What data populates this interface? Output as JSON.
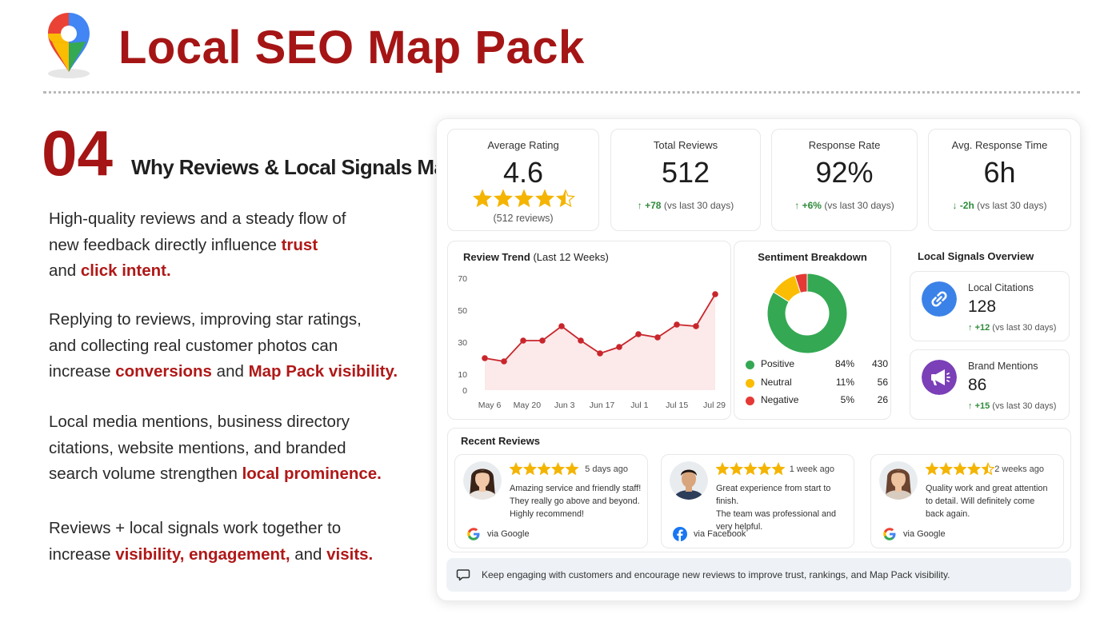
{
  "header": {
    "title": "Local SEO Map Pack",
    "pin_colors": {
      "red": "#EA4335",
      "yellow": "#FBBC04",
      "green": "#34A853",
      "blue": "#4285F4"
    }
  },
  "section": {
    "number": "04",
    "heading": "Why Reviews & Local Signals Matter"
  },
  "paragraphs": [
    [
      [
        {
          "t": "High-quality reviews and a steady flow of",
          "h": false
        }
      ],
      [
        {
          "t": "new feedback directly influence ",
          "h": false
        },
        {
          "t": "trust",
          "h": true
        }
      ],
      [
        {
          "t": "and ",
          "h": false
        },
        {
          "t": "click intent.",
          "h": true
        }
      ]
    ],
    [
      [
        {
          "t": "Replying to reviews, improving star ratings,",
          "h": false
        }
      ],
      [
        {
          "t": "and collecting real customer photos can",
          "h": false
        }
      ],
      [
        {
          "t": "increase ",
          "h": false
        },
        {
          "t": "conversions",
          "h": true
        },
        {
          "t": " and ",
          "h": false
        },
        {
          "t": "Map Pack visibility.",
          "h": true
        }
      ]
    ],
    [
      [
        {
          "t": "Local media mentions, business directory",
          "h": false
        }
      ],
      [
        {
          "t": "citations, website mentions, and branded",
          "h": false
        }
      ],
      [
        {
          "t": "search volume strengthen ",
          "h": false
        },
        {
          "t": "local prominence.",
          "h": true
        }
      ]
    ],
    [
      [
        {
          "t": "Reviews + local signals work together to",
          "h": false
        }
      ],
      [
        {
          "t": "increase ",
          "h": false
        },
        {
          "t": "visibility, engagement,",
          "h": true
        },
        {
          "t": " and ",
          "h": false
        },
        {
          "t": "visits.",
          "h": true
        }
      ]
    ]
  ],
  "kpis": {
    "avg_rating": {
      "label": "Average Rating",
      "value": "4.6",
      "stars": 4.5,
      "sub": "(512 reviews)"
    },
    "total_reviews": {
      "label": "Total Reviews",
      "value": "512",
      "change": "+78",
      "note": "(vs last 30 days)"
    },
    "response_rate": {
      "label": "Response Rate",
      "value": "92%",
      "change": "+6%",
      "note": "(vs last 30 days)"
    },
    "avg_response_time": {
      "label": "Avg. Response Time",
      "value": "6h",
      "change": "-2h",
      "note": "(vs last 30 days)"
    }
  },
  "review_trend": {
    "title": "Review Trend",
    "subtitle": "(Last 12 Weeks)",
    "chart_data": {
      "type": "line",
      "x_tick_labels": [
        "May 6",
        "May 20",
        "Jun 3",
        "Jun 17",
        "Jul 1",
        "Jul 15",
        "Jul 29"
      ],
      "y_ticks": [
        0,
        10,
        30,
        50,
        70
      ],
      "ylim": [
        0,
        70
      ],
      "values": [
        20,
        18,
        31,
        31,
        40,
        31,
        23,
        27,
        35,
        33,
        41,
        40,
        60
      ],
      "line_color": "#c8262c",
      "fill_color": "#fbe3e4"
    }
  },
  "sentiment": {
    "title": "Sentiment Breakdown",
    "chart_data": {
      "type": "pie",
      "slices": [
        {
          "name": "Positive",
          "pct": "84%",
          "count": "430",
          "value": 84,
          "color": "#34A853"
        },
        {
          "name": "Neutral",
          "pct": "11%",
          "count": "56",
          "value": 11,
          "color": "#FBBC04"
        },
        {
          "name": "Negative",
          "pct": "5%",
          "count": "26",
          "value": 5,
          "color": "#E53935"
        }
      ]
    }
  },
  "local_signals": {
    "title": "Local Signals Overview",
    "citations": {
      "label": "Local Citations",
      "value": "128",
      "change": "+12",
      "note": "(vs last 30 days)",
      "icon": "link-icon",
      "color": "#3b82e8"
    },
    "mentions": {
      "label": "Brand Mentions",
      "value": "86",
      "change": "+15",
      "note": "(vs last 30 days)",
      "icon": "megaphone-icon",
      "color": "#7b3fb8"
    }
  },
  "recent_reviews": {
    "title": "Recent Reviews",
    "items": [
      {
        "time": "5 days ago",
        "stars": 5,
        "text": [
          "Amazing service and friendly staff!",
          "They really go above and beyond.",
          "Highly recommend!"
        ],
        "source": "via Google"
      },
      {
        "time": "1 week ago",
        "stars": 5,
        "text": [
          "Great experience from start to finish.",
          "The team was professional and",
          "very helpful."
        ],
        "source": "via Facebook"
      },
      {
        "time": "2 weeks ago",
        "stars": 4.5,
        "text": [
          "Quality work and great attention",
          "to detail. Will definitely come",
          "back again."
        ],
        "source": "via Google"
      }
    ]
  },
  "footer": {
    "text": "Keep engaging with customers and encourage new reviews to improve trust, rankings, and Map Pack visibility."
  }
}
